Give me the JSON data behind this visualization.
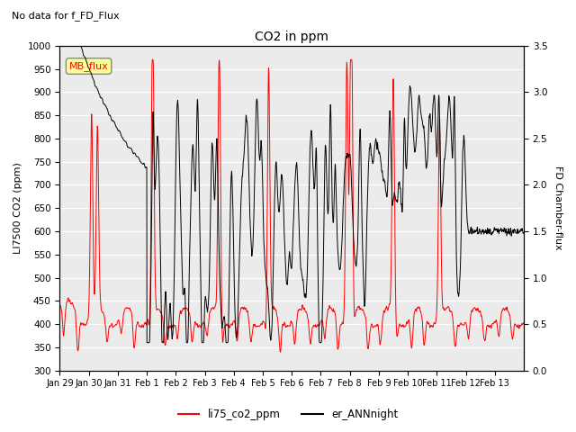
{
  "title": "CO2 in ppm",
  "top_left_text": "No data for f_FD_Flux",
  "ylabel_left": "LI7500 CO2 (ppm)",
  "ylabel_right": "FD Chamber-flux",
  "ylim_left": [
    300,
    1000
  ],
  "ylim_right": [
    0.0,
    3.5
  ],
  "yticks_left": [
    300,
    350,
    400,
    450,
    500,
    550,
    600,
    650,
    700,
    750,
    800,
    850,
    900,
    950,
    1000
  ],
  "yticks_right": [
    0.0,
    0.5,
    1.0,
    1.5,
    2.0,
    2.5,
    3.0,
    3.5
  ],
  "legend_labels": [
    "li75_co2_ppm",
    "er_ANNnight"
  ],
  "legend_colors": [
    "red",
    "black"
  ],
  "mb_flux_box_color": "#ffff99",
  "mb_flux_text_color": "red",
  "n_points": 5000,
  "xtick_labels": [
    "Jan 29",
    "Jan 30",
    "Jan 31",
    "Feb 1",
    "Feb 2",
    "Feb 3",
    "Feb 4",
    "Feb 5",
    "Feb 6",
    "Feb 7",
    "Feb 8",
    "Feb 9",
    "Feb 10",
    "Feb 11",
    "Feb 12",
    "Feb 13"
  ],
  "bg_color": "#ebebeb",
  "line_color_red": "#ff0000",
  "line_color_black": "#000000"
}
